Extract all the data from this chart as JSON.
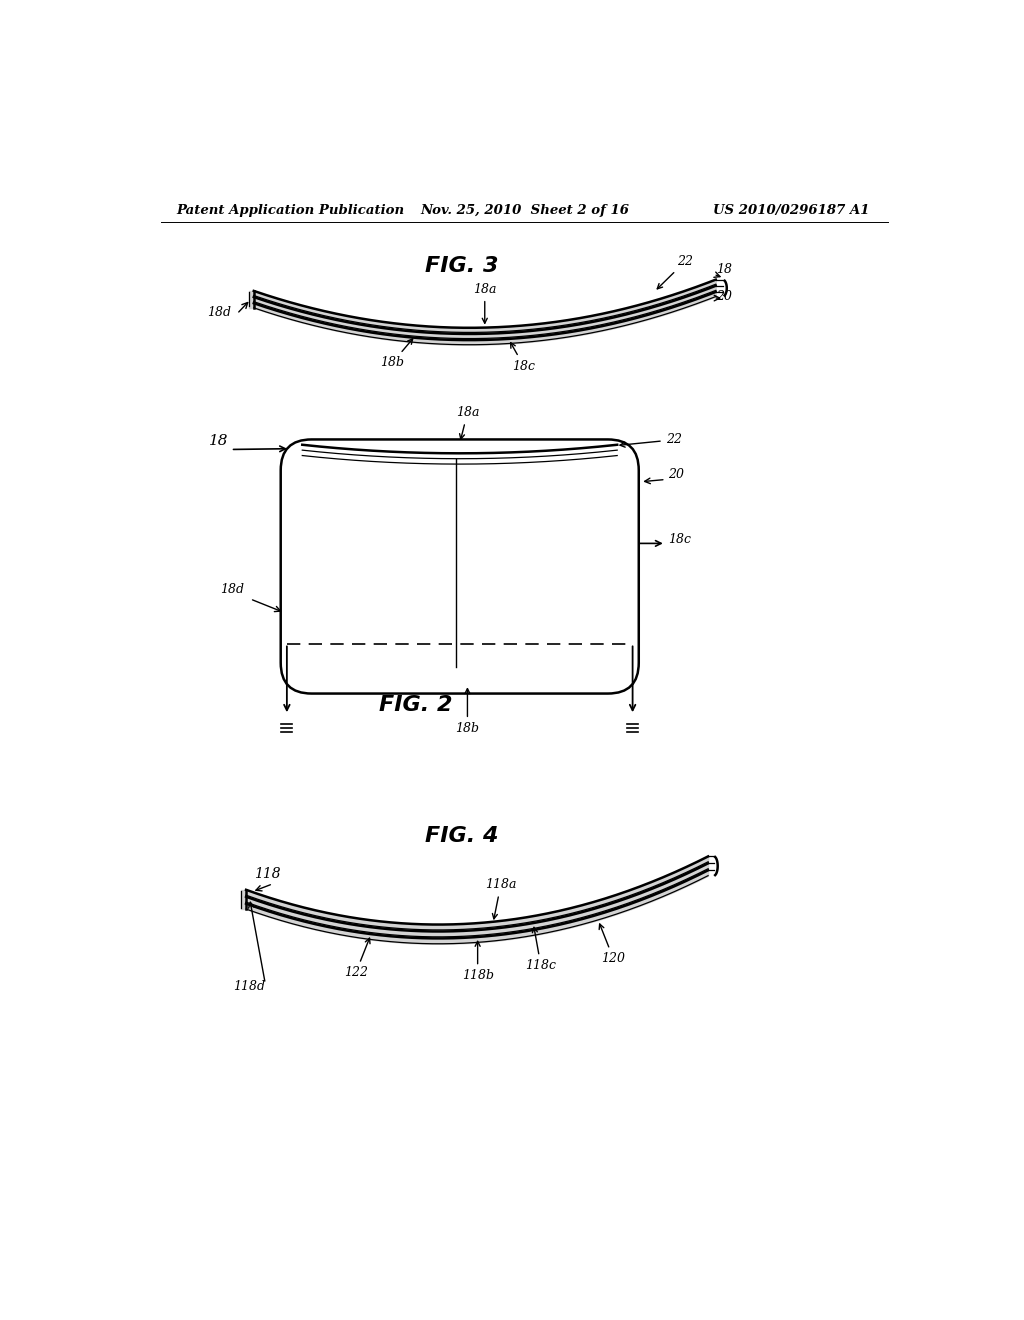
{
  "background_color": "#ffffff",
  "header_left": "Patent Application Publication",
  "header_center": "Nov. 25, 2010  Sheet 2 of 16",
  "header_right": "US 2010/0296187 A1",
  "fig3_title": "FIG. 3",
  "fig2_title": "FIG. 2",
  "fig4_title": "FIG. 4"
}
